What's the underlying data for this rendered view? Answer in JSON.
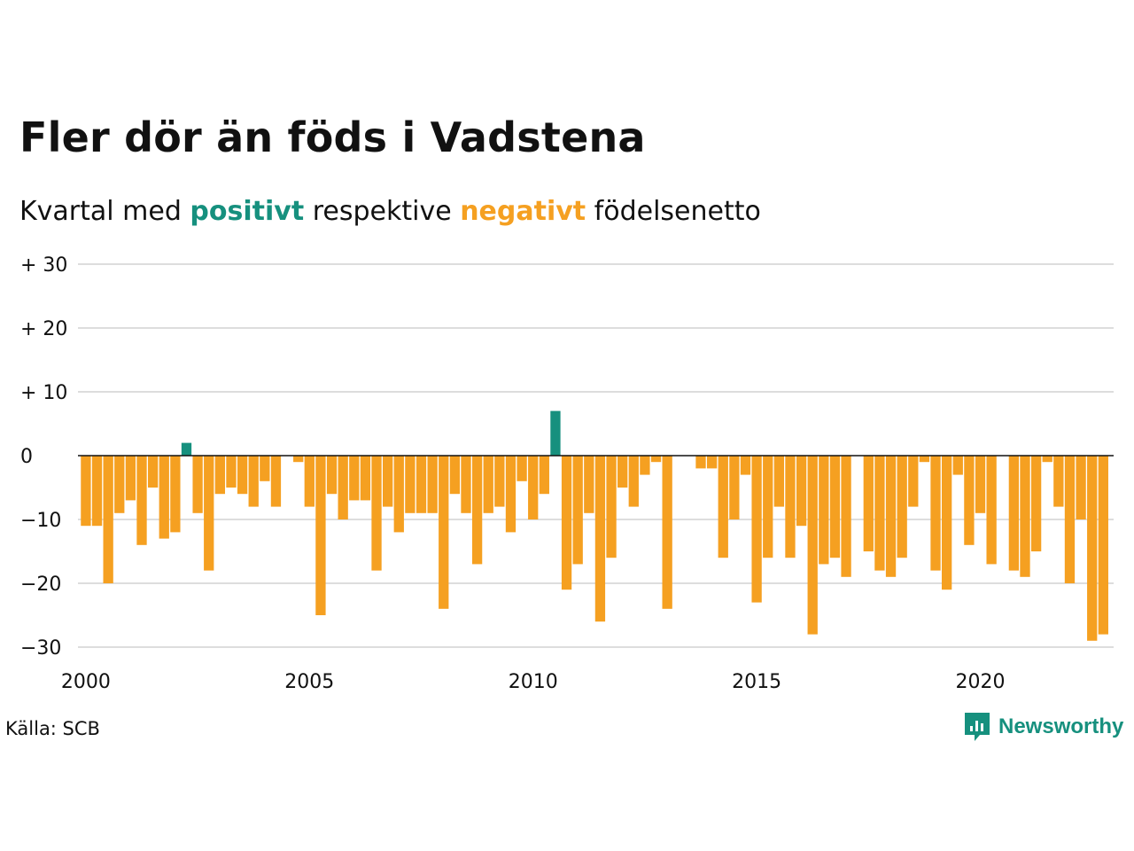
{
  "title": "Fler dör än föds i Vadstena",
  "subtitle": {
    "prefix": "Kvartal med ",
    "positive": "positivt",
    "middle": " respektive ",
    "negative": "negativt",
    "suffix": " födelsenetto"
  },
  "source": "Källa: SCB",
  "brand": {
    "name": "Newsworthy",
    "icon": "newsworthy-logo-icon"
  },
  "colors": {
    "positive": "#16907e",
    "negative": "#f5a021",
    "grid": "#dddddd",
    "zero": "#111111"
  },
  "chart_data": {
    "type": "bar",
    "x_start": "2000 Q1",
    "x_tick_labels": [
      "2000",
      "2005",
      "2010",
      "2015",
      "2020"
    ],
    "y_tick_labels": [
      "+ 30",
      "+ 20",
      "+ 10",
      "0",
      "−10",
      "−20",
      "−30"
    ],
    "y_ticks": [
      30,
      20,
      10,
      0,
      -10,
      -20,
      -30
    ],
    "ylim": [
      -30,
      30
    ],
    "grid": true,
    "values": [
      -11,
      -11,
      -20,
      -9,
      -7,
      -14,
      -5,
      -13,
      -12,
      2,
      -9,
      -18,
      -6,
      -5,
      -6,
      -8,
      -4,
      -8,
      0,
      -1,
      -8,
      -25,
      -6,
      -10,
      -7,
      -7,
      -18,
      -8,
      -12,
      -9,
      -9,
      -9,
      -24,
      -6,
      -9,
      -17,
      -9,
      -8,
      -12,
      -4,
      -10,
      -6,
      7,
      -21,
      -17,
      -9,
      -26,
      -16,
      -5,
      -8,
      -3,
      -1,
      -24,
      0,
      0,
      -2,
      -2,
      -16,
      -10,
      -3,
      -23,
      -16,
      -8,
      -16,
      -11,
      -28,
      -17,
      -16,
      -19,
      0,
      -15,
      -18,
      -19,
      -16,
      -8,
      -1,
      -18,
      -21,
      -3,
      -14,
      -9,
      -17,
      0,
      -18,
      -19,
      -15,
      -1,
      -8,
      -20,
      -10,
      -29,
      -28
    ]
  }
}
